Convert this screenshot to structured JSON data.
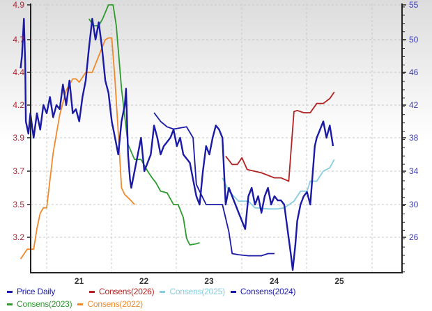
{
  "chart_data": {
    "type": "line",
    "title": "",
    "xlabel": "",
    "ylabel_left": "",
    "ylabel_right": "",
    "x_ticks": [
      "21",
      "22",
      "23",
      "24",
      "25"
    ],
    "y_left_ticks": [
      "4.9",
      "4.7",
      "4.4",
      "4.2",
      "3.9",
      "3.7",
      "3.5",
      "3.2"
    ],
    "y_right_ticks": [
      "55",
      "50",
      "46",
      "42",
      "38",
      "34",
      "30",
      "26"
    ],
    "grid": true,
    "legend_position": "bottom",
    "series": [
      {
        "name": "Price Daily",
        "axis": "right",
        "color": "#1a1aa6",
        "points": [
          [
            2020.6,
            46.5
          ],
          [
            2020.62,
            48
          ],
          [
            2020.65,
            53
          ],
          [
            2020.67,
            47
          ],
          [
            2020.68,
            40
          ],
          [
            2020.72,
            38.5
          ],
          [
            2020.75,
            41
          ],
          [
            2020.8,
            38
          ],
          [
            2020.85,
            41
          ],
          [
            2020.9,
            39
          ],
          [
            2020.95,
            42
          ],
          [
            2021.0,
            41
          ],
          [
            2021.05,
            43
          ],
          [
            2021.1,
            40.5
          ],
          [
            2021.15,
            42
          ],
          [
            2021.2,
            41.5
          ],
          [
            2021.25,
            44.5
          ],
          [
            2021.3,
            42
          ],
          [
            2021.35,
            45
          ],
          [
            2021.4,
            41
          ],
          [
            2021.45,
            41.5
          ],
          [
            2021.5,
            40
          ],
          [
            2021.55,
            43
          ],
          [
            2021.6,
            45
          ],
          [
            2021.65,
            49
          ],
          [
            2021.7,
            53
          ],
          [
            2021.75,
            50
          ],
          [
            2021.8,
            52.5
          ],
          [
            2021.85,
            49
          ],
          [
            2021.9,
            45
          ],
          [
            2021.95,
            43.5
          ],
          [
            2022.0,
            40
          ],
          [
            2022.05,
            38
          ],
          [
            2022.1,
            36
          ],
          [
            2022.15,
            40
          ],
          [
            2022.2,
            42
          ],
          [
            2022.22,
            44
          ],
          [
            2022.25,
            36
          ],
          [
            2022.28,
            33
          ],
          [
            2022.3,
            32
          ],
          [
            2022.35,
            34
          ],
          [
            2022.4,
            36
          ],
          [
            2022.45,
            38
          ],
          [
            2022.5,
            34
          ],
          [
            2022.55,
            35
          ],
          [
            2022.6,
            36
          ],
          [
            2022.65,
            39.5
          ],
          [
            2022.7,
            38
          ],
          [
            2022.75,
            36
          ],
          [
            2022.8,
            37
          ],
          [
            2022.85,
            37.5
          ],
          [
            2022.9,
            38
          ],
          [
            2022.95,
            39
          ],
          [
            2023.0,
            37
          ],
          [
            2023.05,
            38
          ],
          [
            2023.1,
            36
          ],
          [
            2023.2,
            35
          ],
          [
            2023.25,
            33
          ],
          [
            2023.3,
            31
          ],
          [
            2023.35,
            30
          ],
          [
            2023.4,
            34
          ],
          [
            2023.45,
            37
          ],
          [
            2023.5,
            36
          ],
          [
            2023.55,
            38
          ],
          [
            2023.6,
            39.5
          ],
          [
            2023.65,
            39
          ],
          [
            2023.7,
            38
          ],
          [
            2023.75,
            30
          ],
          [
            2023.8,
            32
          ],
          [
            2023.85,
            31
          ],
          [
            2023.9,
            30
          ],
          [
            2023.95,
            29
          ],
          [
            2024.0,
            28
          ],
          [
            2024.05,
            27
          ],
          [
            2024.1,
            31
          ],
          [
            2024.15,
            32
          ],
          [
            2024.2,
            30
          ],
          [
            2024.25,
            31
          ],
          [
            2024.3,
            29
          ],
          [
            2024.35,
            31
          ],
          [
            2024.4,
            32
          ],
          [
            2024.45,
            30
          ],
          [
            2024.5,
            31
          ],
          [
            2024.55,
            30.5
          ],
          [
            2024.6,
            30.5
          ],
          [
            2024.65,
            30
          ],
          [
            2024.7,
            27
          ],
          [
            2024.75,
            24
          ],
          [
            2024.78,
            22
          ],
          [
            2024.82,
            25
          ],
          [
            2024.85,
            28
          ],
          [
            2024.9,
            30
          ],
          [
            2024.95,
            31
          ],
          [
            2025.0,
            31.5
          ],
          [
            2025.05,
            30
          ],
          [
            2025.08,
            33
          ],
          [
            2025.12,
            37
          ],
          [
            2025.15,
            38
          ],
          [
            2025.2,
            39
          ],
          [
            2025.25,
            40
          ],
          [
            2025.3,
            38
          ],
          [
            2025.35,
            39.5
          ],
          [
            2025.4,
            37
          ]
        ]
      },
      {
        "name": "Consens(2026)",
        "axis": "left",
        "color": "#b22222",
        "points": [
          [
            2023.75,
            3.79
          ],
          [
            2023.85,
            3.74
          ],
          [
            2023.93,
            3.74
          ],
          [
            2024.0,
            3.78
          ],
          [
            2024.08,
            3.71
          ],
          [
            2024.3,
            3.69
          ],
          [
            2024.5,
            3.66
          ],
          [
            2024.6,
            3.66
          ],
          [
            2024.72,
            3.64
          ],
          [
            2024.8,
            4.14
          ],
          [
            2024.85,
            4.15
          ],
          [
            2024.95,
            4.13
          ],
          [
            2025.05,
            4.13
          ],
          [
            2025.15,
            4.21
          ],
          [
            2025.25,
            4.21
          ],
          [
            2025.35,
            4.24
          ],
          [
            2025.42,
            4.28
          ]
        ]
      },
      {
        "name": "Consens(2025)",
        "axis": "left",
        "color": "#87cde0",
        "points": [
          [
            2023.7,
            3.66
          ],
          [
            2023.8,
            3.58
          ],
          [
            2023.95,
            3.52
          ],
          [
            2024.1,
            3.52
          ],
          [
            2024.2,
            3.47
          ],
          [
            2024.4,
            3.46
          ],
          [
            2024.55,
            3.46
          ],
          [
            2024.65,
            3.47
          ],
          [
            2024.8,
            3.52
          ],
          [
            2024.9,
            3.58
          ],
          [
            2025.0,
            3.58
          ],
          [
            2025.05,
            3.64
          ],
          [
            2025.15,
            3.64
          ],
          [
            2025.25,
            3.7
          ],
          [
            2025.35,
            3.72
          ],
          [
            2025.42,
            3.77
          ]
        ]
      },
      {
        "name": "Consens(2024)",
        "axis": "left",
        "color": "#1a1aa6",
        "points": [
          [
            2022.65,
            4.13
          ],
          [
            2022.75,
            4.05
          ],
          [
            2022.85,
            4.0
          ],
          [
            2022.95,
            3.98
          ],
          [
            2023.05,
            3.99
          ],
          [
            2023.15,
            4.0
          ],
          [
            2023.25,
            3.9
          ],
          [
            2023.3,
            3.62
          ],
          [
            2023.45,
            3.5
          ],
          [
            2023.7,
            3.5
          ],
          [
            2023.8,
            3.25
          ],
          [
            2023.85,
            3.05
          ],
          [
            2023.95,
            3.04
          ],
          [
            2024.1,
            3.03
          ],
          [
            2024.3,
            3.03
          ],
          [
            2024.4,
            3.05
          ],
          [
            2024.5,
            3.05
          ]
        ]
      },
      {
        "name": "Consens(2023)",
        "axis": "left",
        "color": "#2e9a2e",
        "points": [
          [
            2021.65,
            4.82
          ],
          [
            2021.72,
            4.78
          ],
          [
            2021.8,
            4.78
          ],
          [
            2021.86,
            4.82
          ],
          [
            2021.95,
            4.9
          ],
          [
            2022.02,
            4.9
          ],
          [
            2022.07,
            4.78
          ],
          [
            2022.15,
            4.3
          ],
          [
            2022.25,
            3.86
          ],
          [
            2022.35,
            3.77
          ],
          [
            2022.45,
            3.77
          ],
          [
            2022.55,
            3.7
          ],
          [
            2022.62,
            3.66
          ],
          [
            2022.68,
            3.63
          ],
          [
            2022.75,
            3.58
          ],
          [
            2022.85,
            3.57
          ],
          [
            2022.95,
            3.5
          ],
          [
            2023.02,
            3.5
          ],
          [
            2023.1,
            3.38
          ],
          [
            2023.15,
            3.19
          ],
          [
            2023.2,
            3.13
          ],
          [
            2023.3,
            3.14
          ],
          [
            2023.35,
            3.15
          ]
        ]
      },
      {
        "name": "Consens(2022)",
        "axis": "left",
        "color": "#f0892a",
        "points": [
          [
            2020.6,
            3.0
          ],
          [
            2020.7,
            3.09
          ],
          [
            2020.8,
            3.09
          ],
          [
            2020.85,
            3.28
          ],
          [
            2020.9,
            3.42
          ],
          [
            2020.95,
            3.47
          ],
          [
            2021.0,
            3.47
          ],
          [
            2021.1,
            3.81
          ],
          [
            2021.2,
            4.11
          ],
          [
            2021.3,
            4.29
          ],
          [
            2021.4,
            4.36
          ],
          [
            2021.45,
            4.36
          ],
          [
            2021.5,
            4.34
          ],
          [
            2021.6,
            4.4
          ],
          [
            2021.7,
            4.4
          ],
          [
            2021.8,
            4.55
          ],
          [
            2021.9,
            4.7
          ],
          [
            2021.95,
            4.71
          ],
          [
            2022.0,
            4.71
          ],
          [
            2022.05,
            4.35
          ],
          [
            2022.1,
            3.95
          ],
          [
            2022.15,
            3.6
          ],
          [
            2022.2,
            3.56
          ],
          [
            2022.28,
            3.53
          ],
          [
            2022.35,
            3.5
          ]
        ]
      }
    ]
  },
  "legend": {
    "items": [
      {
        "label": "Price Daily",
        "color": "#1a1aa6"
      },
      {
        "label": "Consens(2026)",
        "color": "#b22222"
      },
      {
        "label": "Consens(2025)",
        "color": "#87cde0"
      },
      {
        "label": "Consens(2024)",
        "color": "#1a1aa6"
      },
      {
        "label": "Consens(2023)",
        "color": "#2e9a2e"
      },
      {
        "label": "Consens(2022)",
        "color": "#f0892a"
      }
    ]
  },
  "colors": {
    "left_axis_text": "#b22234",
    "right_axis_text": "#3b3bb0",
    "x_axis_text": "#333333",
    "axis_line": "#222222",
    "grid": "#c8c8c8"
  }
}
